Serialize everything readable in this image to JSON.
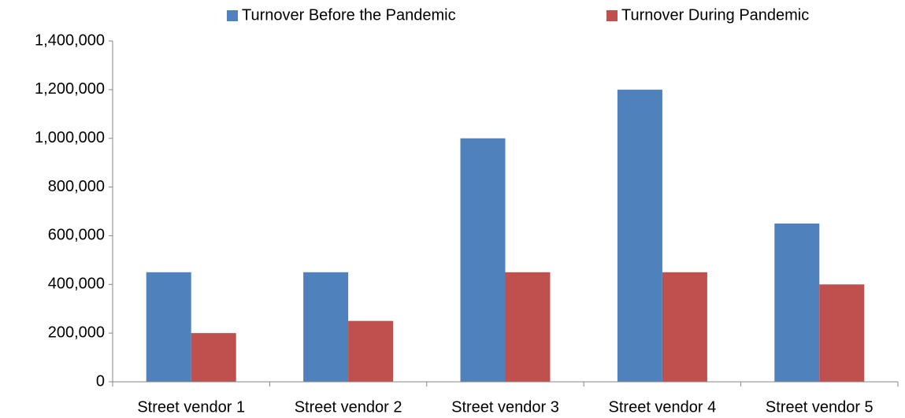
{
  "chart_data": {
    "type": "bar",
    "categories": [
      "Street vendor 1",
      "Street vendor 2",
      "Street vendor 3",
      "Street vendor 4",
      "Street vendor 5"
    ],
    "series": [
      {
        "name": "Turnover Before the Pandemic",
        "color": "#4f81bd",
        "values": [
          450000,
          450000,
          1000000,
          1200000,
          650000
        ]
      },
      {
        "name": "Turnover During Pandemic",
        "color": "#c0504d",
        "values": [
          200000,
          250000,
          450000,
          450000,
          400000
        ]
      }
    ],
    "ylim": [
      0,
      1400000
    ],
    "yticks": [
      0,
      {
        "value": 200000,
        "label": "200,000"
      },
      {
        "value": 400000,
        "label": "400,000"
      },
      {
        "value": 600000,
        "label": "600,000"
      },
      {
        "value": 800000,
        "label": "800,000"
      },
      {
        "value": 1000000,
        "label": "1,000,000"
      },
      {
        "value": 1200000,
        "label": "1,200,000"
      },
      {
        "value": 1400000,
        "label": "1,400,000"
      }
    ],
    "grid": false,
    "legend": "top"
  }
}
